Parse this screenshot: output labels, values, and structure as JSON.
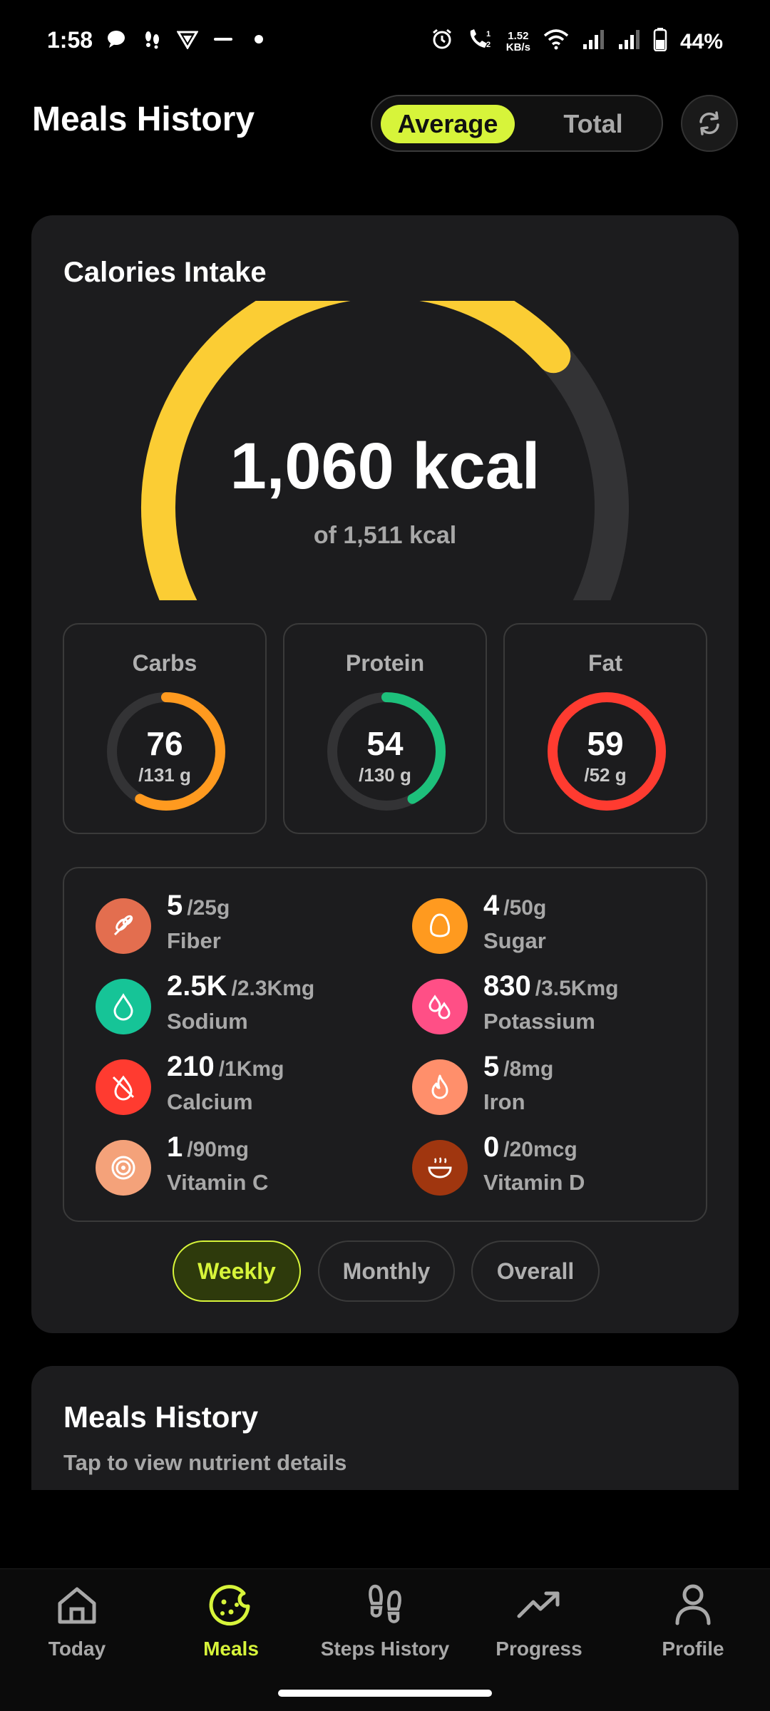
{
  "status_bar": {
    "time": "1:58",
    "net_speed_value": "1.52",
    "net_speed_unit": "KB/s",
    "battery": "44%",
    "icons": [
      "chat-icon",
      "steps-icon",
      "vpn-icon",
      "dot-icon",
      "alarm-icon",
      "call-icon",
      "wifi-icon",
      "signal-icon",
      "signal-icon",
      "battery-icon"
    ]
  },
  "header": {
    "title": "Meals History",
    "toggle_average": "Average",
    "toggle_total": "Total",
    "refresh_icon": "refresh-icon"
  },
  "calories": {
    "title": "Calories Intake",
    "value": "1,060 kcal",
    "goal": "of 1,511 kcal",
    "progress_fraction": 0.7,
    "colors": {
      "fill": "#fbcd34",
      "track": "#333335"
    }
  },
  "macros": [
    {
      "label": "Carbs",
      "value": "76",
      "goal": "/131 g",
      "fraction": 0.58,
      "color": "#ff9a1f"
    },
    {
      "label": "Protein",
      "value": "54",
      "goal": "/130 g",
      "fraction": 0.42,
      "color": "#1dc07b"
    },
    {
      "label": "Fat",
      "value": "59",
      "goal": "/52 g",
      "fraction": 1.0,
      "color": "#ff3b30"
    }
  ],
  "micros": [
    {
      "value": "5",
      "goal": "/25g",
      "name": "Fiber",
      "icon": "wheat-icon",
      "color": "#e36e4f"
    },
    {
      "value": "4",
      "goal": "/50g",
      "name": "Sugar",
      "icon": "egg-icon",
      "color": "#ff9a1f"
    },
    {
      "value": "2.5K",
      "goal": "/2.3Kmg",
      "name": "Sodium",
      "icon": "droplet-icon",
      "color": "#16c497"
    },
    {
      "value": "830",
      "goal": "/3.5Kmg",
      "name": "Potassium",
      "icon": "drops-icon",
      "color": "#ff4f86"
    },
    {
      "value": "210",
      "goal": "/1Kmg",
      "name": "Calcium",
      "icon": "milk-off-icon",
      "color": "#ff3b30"
    },
    {
      "value": "5",
      "goal": "/8mg",
      "name": "Iron",
      "icon": "flame-icon",
      "color": "#ff8f6b"
    },
    {
      "value": "1",
      "goal": "/90mg",
      "name": "Vitamin C",
      "icon": "citrus-icon",
      "color": "#f4a27a"
    },
    {
      "value": "0",
      "goal": "/20mcg",
      "name": "Vitamin D",
      "icon": "soup-icon",
      "color": "#a0360f"
    }
  ],
  "periods": {
    "weekly": "Weekly",
    "monthly": "Monthly",
    "overall": "Overall"
  },
  "history_card": {
    "title": "Meals History",
    "subtitle": "Tap to view nutrient details"
  },
  "nav": {
    "today": "Today",
    "meals": "Meals",
    "steps": "Steps History",
    "progress": "Progress",
    "profile": "Profile",
    "accent": "#d7f43a"
  }
}
